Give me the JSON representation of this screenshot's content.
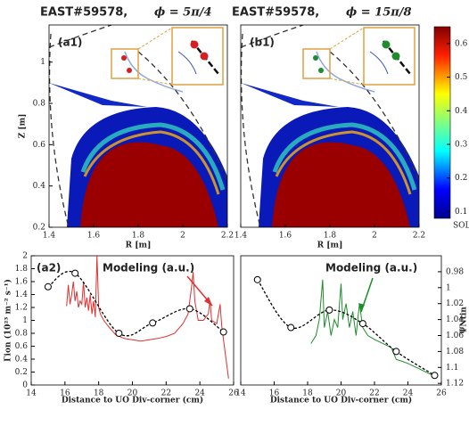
{
  "chart_data": [
    {
      "type": "heatmap",
      "title": "EAST#59578,",
      "subtitle": "ϕ = 5π/4",
      "label": "(a1)",
      "color": "#d42020",
      "xlabel": "R [m]",
      "ylabel": "Z [m]",
      "xlim": [
        1.4,
        2.2
      ],
      "xticks": [
        1.4,
        1.6,
        1.8,
        2,
        2.2
      ],
      "ylim": [
        0.2,
        1.18
      ],
      "yticks": [
        0.2,
        0.4,
        0.6,
        0.8,
        1
      ]
    },
    {
      "type": "heatmap",
      "title": "EAST#59578,",
      "subtitle": "ϕ = 15π/8",
      "label": "(b1)",
      "color": "#1e8c2a",
      "xlabel": "R [m]",
      "xlim": [
        1.4,
        2.2
      ],
      "xticks": [
        1.4,
        1.6,
        1.8,
        2,
        2.2
      ],
      "ylim": [
        0.2,
        1.18
      ]
    },
    {
      "type": "colorbar",
      "label": "SOL",
      "ylim": [
        0.08,
        0.65
      ],
      "yticks": [
        0.1,
        0.2,
        0.3,
        0.4,
        0.5,
        0.6
      ]
    },
    {
      "type": "line",
      "label": "(a2)",
      "annotation": "Modeling (a.u.)",
      "color": "#e03030",
      "xlabel": "Distance to UO  Div-corner (cm)",
      "ylabel": "Γion (10²³ m⁻² s⁻¹)",
      "xlim": [
        14,
        26
      ],
      "xticks": [
        14,
        16,
        18,
        20,
        22,
        24,
        26
      ],
      "ylim": [
        0,
        2
      ],
      "yticks": [
        0,
        0.2,
        0.4,
        0.6,
        0.8,
        1,
        1.2,
        1.4,
        1.6,
        1.8,
        2
      ],
      "series": [
        {
          "color": "#e03030",
          "style": "solid",
          "x": [
            16.1,
            16.2,
            16.3,
            16.4,
            16.5,
            16.6,
            16.7,
            16.8,
            16.9,
            17.0,
            17.1,
            17.2,
            17.3,
            17.4,
            17.5,
            17.6,
            17.7,
            17.8,
            17.9,
            18.0,
            18.1,
            18.3,
            18.6,
            19.0,
            19.5,
            20,
            20.5,
            21,
            21.5,
            22,
            22.5,
            23,
            23.3,
            23.5,
            23.6,
            23.7,
            23.9,
            24.2,
            24.5,
            24.6,
            24.7,
            25.0,
            25.2,
            25.3,
            25.5,
            25.7
          ],
          "values": [
            1.22,
            1.55,
            1.25,
            1.4,
            1.6,
            1.3,
            1.45,
            1.2,
            1.3,
            1.25,
            1.6,
            1.2,
            1.35,
            1.15,
            1.4,
            1.1,
            1.3,
            1.05,
            2.0,
            1.2,
            1.1,
            1.0,
            0.9,
            0.78,
            0.72,
            0.7,
            0.68,
            0.7,
            0.72,
            0.75,
            0.8,
            0.95,
            1.1,
            1.5,
            1.75,
            1.3,
            1.0,
            1.0,
            1.1,
            1.3,
            1.0,
            0.95,
            1.25,
            0.9,
            0.5,
            0.1
          ]
        },
        {
          "color": "#000000",
          "style": "dashed",
          "markers": true,
          "x": [
            15,
            16.6,
            19.2,
            21.2,
            23.4,
            25.4
          ],
          "values": [
            1.52,
            1.73,
            0.8,
            0.96,
            1.18,
            0.82
          ]
        }
      ]
    },
    {
      "type": "line",
      "annotation": "Modeling (a.u.)",
      "color": "#1e8c2a",
      "xlabel": "Distance to UO  Div-corner (cm)",
      "y2label": "ΨNtin",
      "xlim": [
        14,
        26
      ],
      "xticks": [
        14,
        16,
        18,
        20,
        22,
        24,
        26
      ],
      "y2lim": [
        1.122,
        0.96
      ],
      "y2ticks": [
        0.98,
        1,
        1.02,
        1.04,
        1.06,
        1.08,
        1.1,
        1.12
      ],
      "series": [
        {
          "color": "#1e8c2a",
          "style": "solid",
          "axis": "y2",
          "x": [
            18.2,
            18.5,
            18.7,
            18.9,
            19.0,
            19.2,
            19.4,
            19.6,
            19.8,
            20.0,
            20.1,
            20.3,
            20.5,
            20.7,
            20.9,
            21.1,
            21.3,
            21.6,
            22.0,
            22.5,
            23.0,
            23.3,
            23.6,
            24.0,
            24.5,
            25.0,
            25.5
          ],
          "values": [
            1.07,
            1.06,
            1.04,
            0.99,
            1.05,
            1.03,
            1.06,
            1.04,
            1.05,
            0.995,
            1.04,
            1.02,
            1.05,
            1.03,
            1.06,
            1.02,
            1.05,
            1.06,
            1.065,
            1.07,
            1.075,
            1.09,
            1.092,
            1.095,
            1.1,
            1.105,
            1.11
          ]
        },
        {
          "color": "#000000",
          "style": "dashed",
          "markers": true,
          "axis": "y2",
          "x": [
            15,
            17,
            19.3,
            21.3,
            23.3,
            25.6
          ],
          "values": [
            0.99,
            1.05,
            1.028,
            1.045,
            1.08,
            1.11
          ]
        }
      ]
    }
  ]
}
